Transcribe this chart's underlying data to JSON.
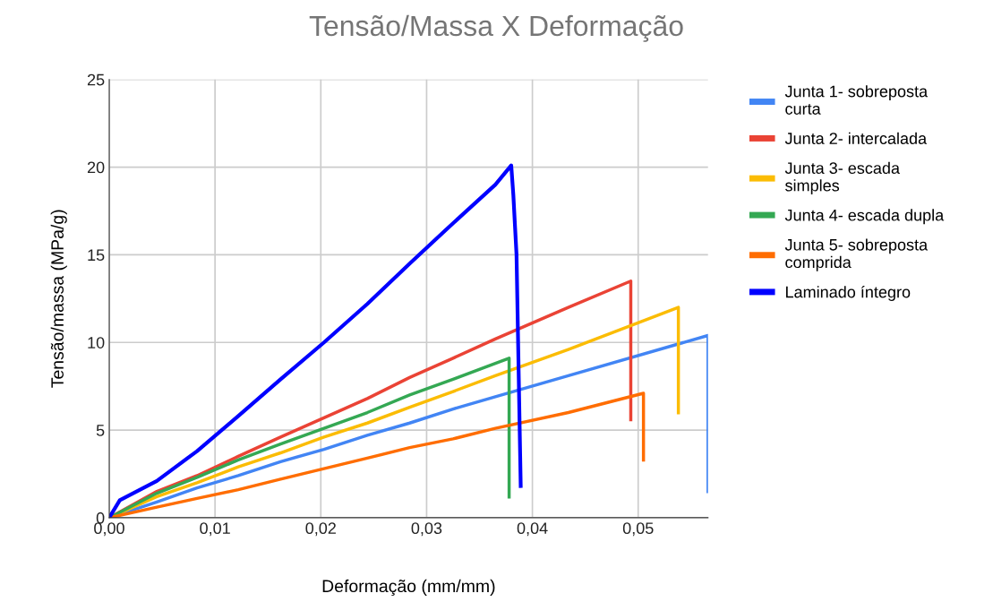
{
  "chart_data": {
    "type": "line",
    "title": "Tensão/Massa X Deformação",
    "xlabel": "Deformação (mm/mm)",
    "ylabel": "Tensão/massa (MPa/g)",
    "xlim": [
      0,
      0.0566
    ],
    "ylim": [
      0,
      25
    ],
    "xticks": [
      {
        "value": 0,
        "label": "0,00"
      },
      {
        "value": 0.01,
        "label": "0,01"
      },
      {
        "value": 0.02,
        "label": "0,02"
      },
      {
        "value": 0.03,
        "label": "0,03"
      },
      {
        "value": 0.04,
        "label": "0,04"
      },
      {
        "value": 0.05,
        "label": "0,05"
      }
    ],
    "yticks": [
      0,
      5,
      10,
      15,
      20,
      25
    ],
    "grid": true,
    "legend": "right",
    "marker": "none",
    "line_style": "solid",
    "series": [
      {
        "name": "Junta 1- sobreposta curta",
        "color": "#4285f4",
        "x": [
          0,
          0.0045,
          0.0083,
          0.0122,
          0.0162,
          0.0203,
          0.0244,
          0.0284,
          0.0325,
          0.0365,
          0.0434,
          0.0566,
          0.0566
        ],
        "values": [
          0,
          0.9,
          1.7,
          2.4,
          3.2,
          3.9,
          4.7,
          5.4,
          6.2,
          6.9,
          8.1,
          10.4,
          1.4
        ]
      },
      {
        "name": "Junta 2- intercalada",
        "color": "#ea4335",
        "x": [
          0,
          0.0045,
          0.0083,
          0.0122,
          0.0162,
          0.0203,
          0.0244,
          0.0284,
          0.0325,
          0.0365,
          0.0434,
          0.0493,
          0.0493
        ],
        "values": [
          0,
          1.5,
          2.4,
          3.5,
          4.6,
          5.7,
          6.8,
          8.0,
          9.1,
          10.2,
          12.0,
          13.5,
          5.5
        ]
      },
      {
        "name": "Junta 3- escada simples",
        "color": "#fbbc04",
        "x": [
          0,
          0.0045,
          0.0083,
          0.0122,
          0.0162,
          0.0203,
          0.0244,
          0.0284,
          0.0325,
          0.0365,
          0.0434,
          0.0538,
          0.0538
        ],
        "values": [
          0,
          1.2,
          2.0,
          2.9,
          3.7,
          4.6,
          5.4,
          6.3,
          7.2,
          8.1,
          9.6,
          12.0,
          5.9
        ]
      },
      {
        "name": "Junta 4- escada dupla",
        "color": "#34a853",
        "x": [
          0,
          0.0045,
          0.0083,
          0.0122,
          0.0162,
          0.0203,
          0.0244,
          0.0284,
          0.0325,
          0.0365,
          0.0378,
          0.0378
        ],
        "values": [
          0,
          1.4,
          2.3,
          3.3,
          4.2,
          5.1,
          6.0,
          7.0,
          7.9,
          8.8,
          9.1,
          1.1
        ]
      },
      {
        "name": "Junta 5- sobreposta comprida",
        "color": "#ff6d01",
        "x": [
          0,
          0.0045,
          0.0083,
          0.0122,
          0.0162,
          0.0203,
          0.0244,
          0.0284,
          0.0325,
          0.0365,
          0.0434,
          0.0505,
          0.0505
        ],
        "values": [
          0,
          0.6,
          1.1,
          1.6,
          2.2,
          2.8,
          3.4,
          4.0,
          4.5,
          5.1,
          6.0,
          7.1,
          3.2
        ]
      },
      {
        "name": "Laminado íntegro",
        "color": "#0000ff",
        "x": [
          0,
          0.001,
          0.0045,
          0.0083,
          0.0122,
          0.0162,
          0.0203,
          0.0244,
          0.0284,
          0.0325,
          0.0365,
          0.038,
          0.0382,
          0.0385,
          0.0389
        ],
        "values": [
          0,
          1.0,
          2.1,
          3.8,
          5.8,
          7.9,
          10.0,
          12.2,
          14.5,
          16.8,
          19.0,
          20.1,
          18.4,
          15.0,
          1.7
        ]
      }
    ]
  }
}
